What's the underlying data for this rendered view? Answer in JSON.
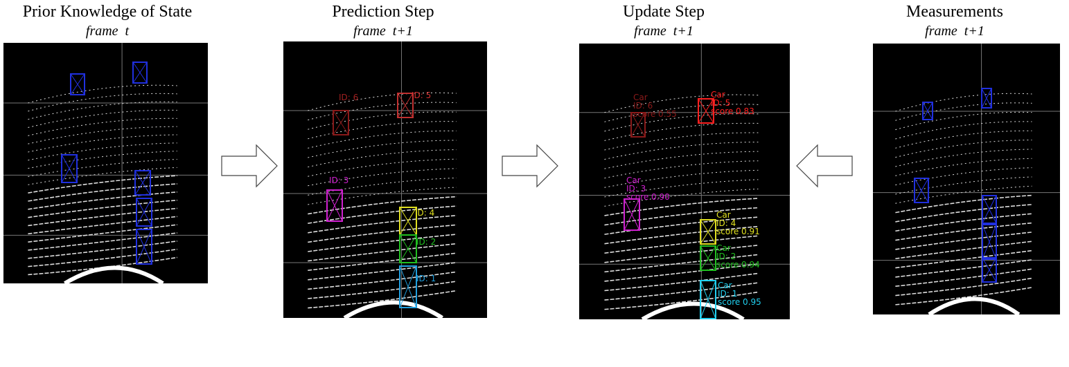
{
  "panels": [
    {
      "title": "Prior Knowledge of State",
      "subtitle": "frame  t",
      "labels": []
    },
    {
      "title": "Prediction Step",
      "subtitle": "frame  t+1",
      "labels": [
        {
          "lines": [
            "ID: 6"
          ]
        },
        {
          "lines": [
            "ID: 5"
          ]
        },
        {
          "lines": [
            "ID: 3"
          ]
        },
        {
          "lines": [
            "ID: 4"
          ]
        },
        {
          "lines": [
            "ID: 2"
          ]
        },
        {
          "lines": [
            "ID: 1"
          ]
        }
      ]
    },
    {
      "title": "Update Step",
      "subtitle": "frame  t+1",
      "labels": [
        {
          "lines": [
            "Car",
            "ID: 6",
            "score 0.55"
          ]
        },
        {
          "lines": [
            "Car",
            "ID: 5",
            "score 0.83"
          ]
        },
        {
          "lines": [
            "Car",
            "ID: 3",
            "score 0.90"
          ]
        },
        {
          "lines": [
            "Car",
            "ID: 4",
            "score 0.91"
          ]
        },
        {
          "lines": [
            "Car",
            "ID: 2",
            "score 0.94"
          ]
        },
        {
          "lines": [
            "Car",
            "ID: 1",
            "score 0.95"
          ]
        }
      ]
    },
    {
      "title": "Measurements",
      "subtitle": "frame  t+1",
      "labels": []
    }
  ]
}
